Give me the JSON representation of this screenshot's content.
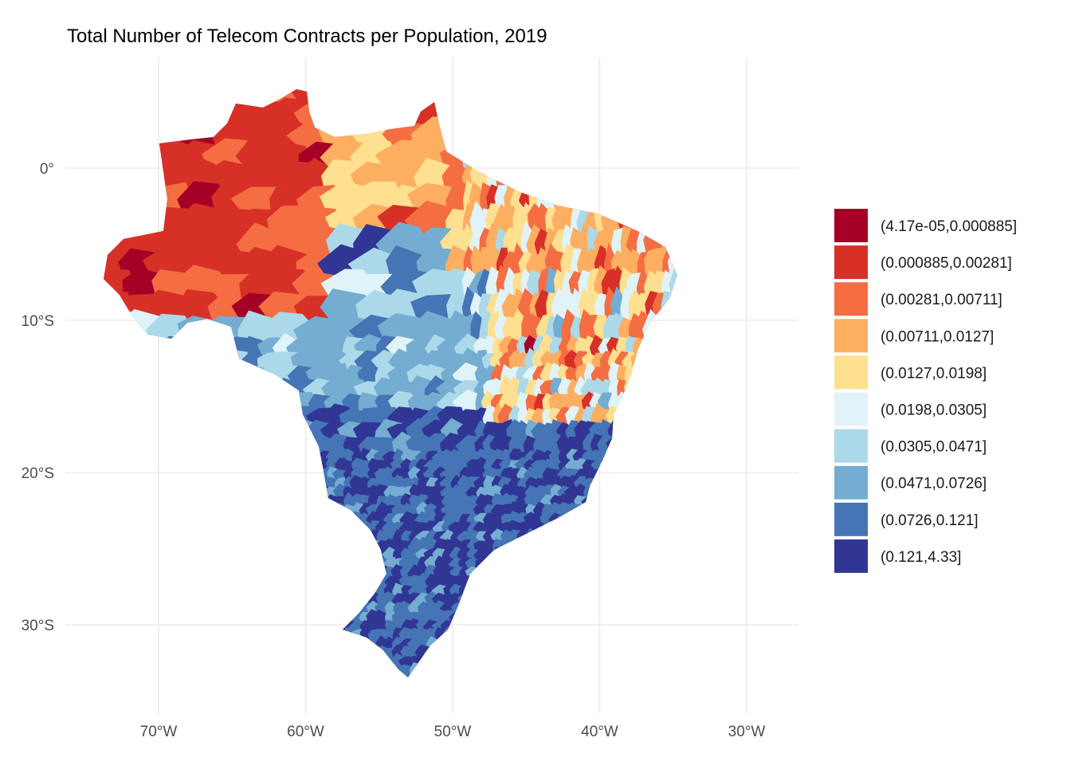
{
  "title": "Total Number of Telecom Contracts per Population, 2019",
  "x_axis": {
    "ticks": [
      "70°W",
      "60°W",
      "50°W",
      "40°W",
      "30°W"
    ],
    "lon_values": [
      -70,
      -60,
      -50,
      -40,
      -30
    ]
  },
  "y_axis": {
    "ticks": [
      "0°",
      "10°S",
      "20°S",
      "30°S"
    ],
    "lat_values": [
      0,
      -10,
      -20,
      -30
    ]
  },
  "legend": {
    "items": [
      {
        "label": "(4.17e-05,0.000885]",
        "color": "#a50026"
      },
      {
        "label": "(0.000885,0.00281]",
        "color": "#d73027"
      },
      {
        "label": "(0.00281,0.00711]",
        "color": "#f46d43"
      },
      {
        "label": "(0.00711,0.0127]",
        "color": "#fdae61"
      },
      {
        "label": "(0.0127,0.0198]",
        "color": "#fee090"
      },
      {
        "label": "(0.0198,0.0305]",
        "color": "#e0f3f8"
      },
      {
        "label": "(0.0305,0.0471]",
        "color": "#abd9e9"
      },
      {
        "label": "(0.0471,0.0726]",
        "color": "#74add1"
      },
      {
        "label": "(0.0726,0.121]",
        "color": "#4575b4"
      },
      {
        "label": "(0.121,4.33]",
        "color": "#313695"
      }
    ]
  }
}
